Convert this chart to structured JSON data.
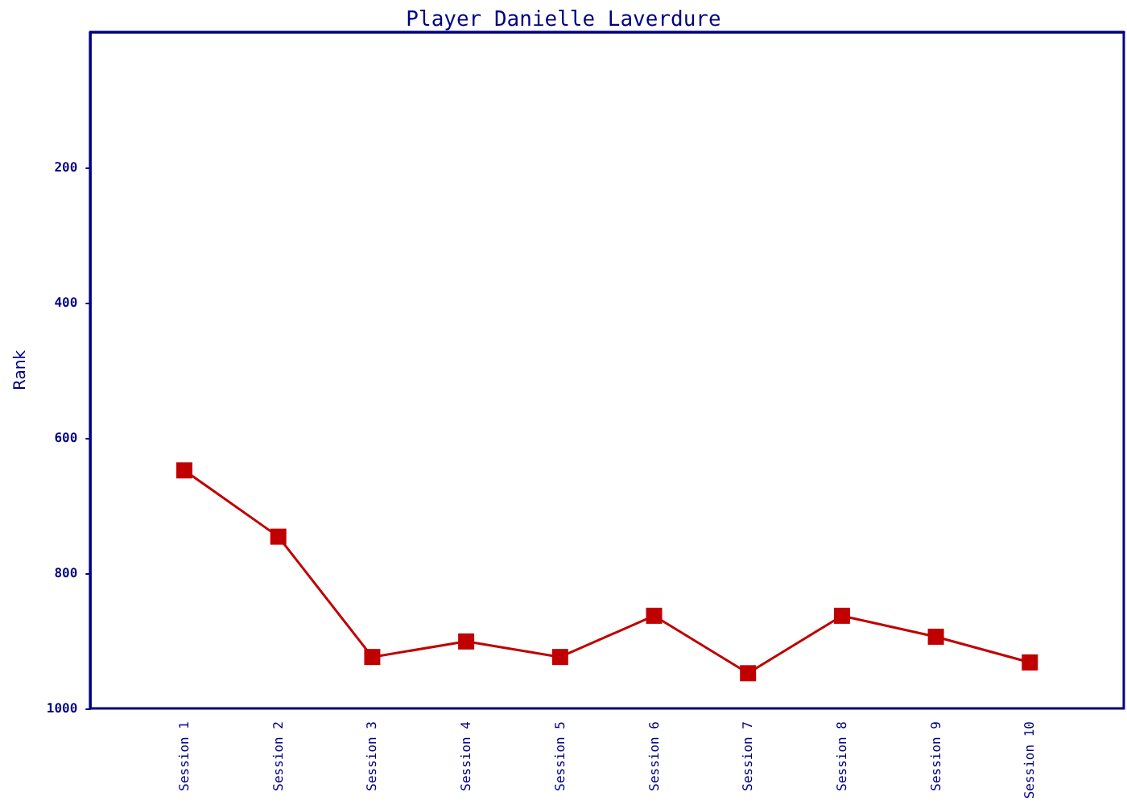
{
  "chart_data": {
    "type": "line",
    "title": "Player Danielle Laverdure",
    "ylabel": "Rank",
    "categories": [
      "Session 1",
      "Session 2",
      "Session 3",
      "Session 4",
      "Session 5",
      "Session 6",
      "Session 7",
      "Session 8",
      "Session 9",
      "Session 10"
    ],
    "series": [
      {
        "color": "#c00000",
        "values": [
          648,
          746,
          924,
          901,
          924,
          863,
          948,
          863,
          894,
          932
        ]
      }
    ],
    "ylim": [
      1000,
      0
    ],
    "yticks": [
      200,
      400,
      600,
      800,
      1000
    ],
    "grid": false,
    "marker": "square",
    "line_style": "solid"
  }
}
